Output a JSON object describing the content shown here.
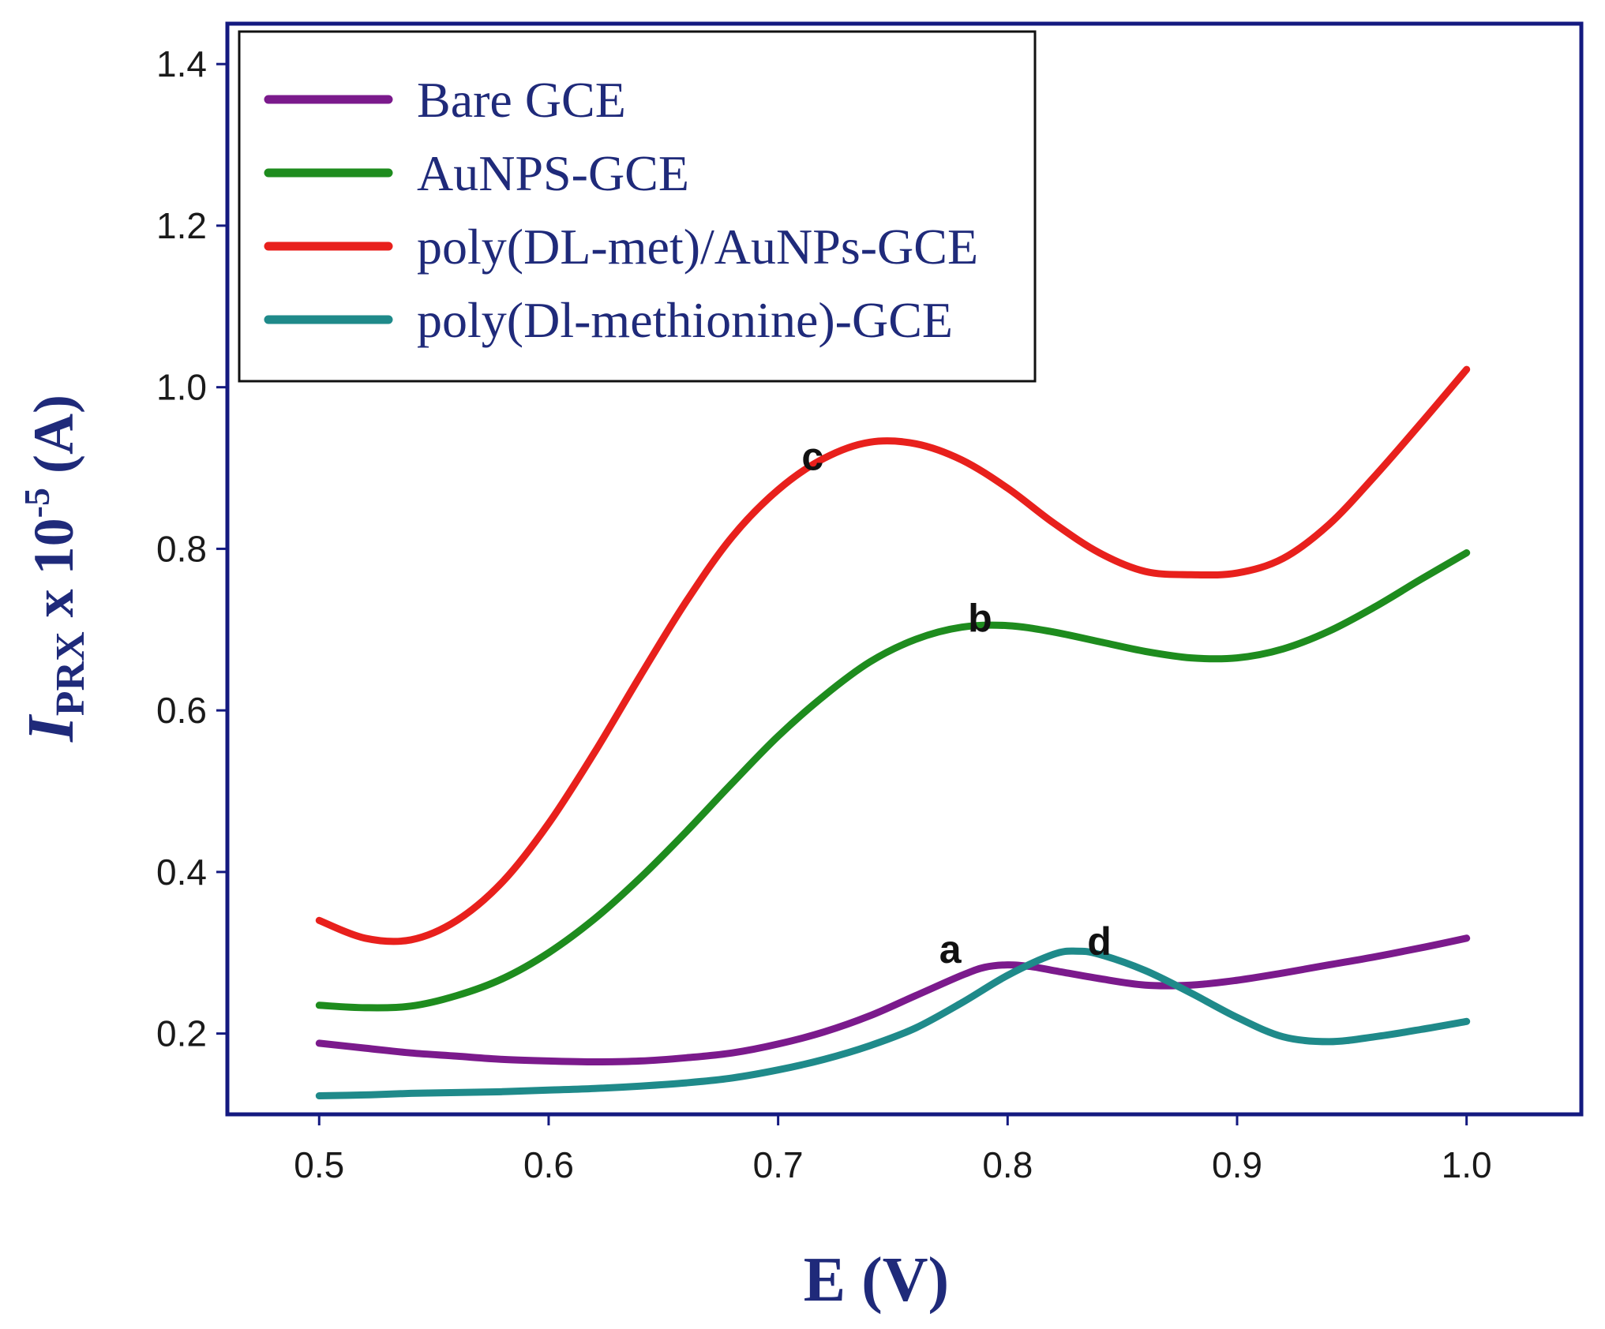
{
  "chart_data": {
    "type": "line",
    "title": "",
    "xlabel": "E (V)",
    "ylabel": {
      "italic_symbol": "I",
      "subscript": "PRX",
      "middle": " x 10",
      "superscript": "-5",
      "unit": " (A)"
    },
    "xlim": [
      0.46,
      1.05
    ],
    "ylim": [
      0.1,
      1.45
    ],
    "xticks": [
      {
        "value": 0.5,
        "label": "0.5"
      },
      {
        "value": 0.6,
        "label": "0.6"
      },
      {
        "value": 0.7,
        "label": "0.7"
      },
      {
        "value": 0.8,
        "label": "0.8"
      },
      {
        "value": 0.9,
        "label": "0.9"
      },
      {
        "value": 1.0,
        "label": "1.0"
      }
    ],
    "yticks": [
      {
        "value": 0.2,
        "label": "0.2"
      },
      {
        "value": 0.4,
        "label": "0.4"
      },
      {
        "value": 0.6,
        "label": "0.6"
      },
      {
        "value": 0.8,
        "label": "0.8"
      },
      {
        "value": 1.0,
        "label": "1.0"
      },
      {
        "value": 1.2,
        "label": "1.2"
      },
      {
        "value": 1.4,
        "label": "1.4"
      }
    ],
    "legend_position": "top-left",
    "series": [
      {
        "name": "Bare GCE",
        "label": "a",
        "label_at": [
          0.775,
          0.305
        ],
        "color": "#7b1a8c",
        "x": [
          0.5,
          0.52,
          0.54,
          0.56,
          0.58,
          0.6,
          0.62,
          0.64,
          0.66,
          0.68,
          0.7,
          0.72,
          0.74,
          0.76,
          0.78,
          0.79,
          0.8,
          0.81,
          0.82,
          0.84,
          0.86,
          0.88,
          0.9,
          0.92,
          0.94,
          0.96,
          0.98,
          1.0
        ],
        "y": [
          0.188,
          0.182,
          0.176,
          0.172,
          0.168,
          0.166,
          0.165,
          0.166,
          0.17,
          0.176,
          0.187,
          0.202,
          0.222,
          0.247,
          0.272,
          0.282,
          0.285,
          0.283,
          0.278,
          0.268,
          0.26,
          0.26,
          0.266,
          0.275,
          0.285,
          0.295,
          0.306,
          0.318
        ]
      },
      {
        "name": "AuNPS-GCE",
        "label": "b",
        "label_at": [
          0.788,
          0.715
        ],
        "color": "#1e8c1e",
        "x": [
          0.5,
          0.52,
          0.54,
          0.56,
          0.58,
          0.6,
          0.62,
          0.64,
          0.66,
          0.68,
          0.7,
          0.72,
          0.74,
          0.76,
          0.78,
          0.8,
          0.82,
          0.84,
          0.86,
          0.88,
          0.9,
          0.92,
          0.94,
          0.96,
          0.98,
          1.0
        ],
        "y": [
          0.235,
          0.232,
          0.234,
          0.247,
          0.268,
          0.3,
          0.342,
          0.393,
          0.45,
          0.51,
          0.568,
          0.618,
          0.66,
          0.688,
          0.703,
          0.705,
          0.697,
          0.685,
          0.673,
          0.665,
          0.665,
          0.676,
          0.698,
          0.728,
          0.762,
          0.795
        ]
      },
      {
        "name": "poly(DL-met)/AuNPs-GCE",
        "label": "c",
        "label_at": [
          0.715,
          0.915
        ],
        "color": "#e8201c",
        "x": [
          0.5,
          0.52,
          0.54,
          0.56,
          0.58,
          0.6,
          0.62,
          0.64,
          0.66,
          0.68,
          0.7,
          0.72,
          0.74,
          0.76,
          0.78,
          0.8,
          0.82,
          0.84,
          0.86,
          0.88,
          0.9,
          0.92,
          0.94,
          0.96,
          0.98,
          1.0
        ],
        "y": [
          0.34,
          0.318,
          0.316,
          0.34,
          0.388,
          0.46,
          0.548,
          0.643,
          0.735,
          0.815,
          0.873,
          0.912,
          0.932,
          0.93,
          0.91,
          0.875,
          0.832,
          0.795,
          0.772,
          0.768,
          0.77,
          0.788,
          0.83,
          0.89,
          0.955,
          1.022
        ]
      },
      {
        "name": "poly(Dl-methionine)-GCE",
        "label": "d",
        "label_at": [
          0.84,
          0.315
        ],
        "color": "#1f8a8a",
        "x": [
          0.5,
          0.52,
          0.54,
          0.56,
          0.58,
          0.6,
          0.62,
          0.64,
          0.66,
          0.68,
          0.7,
          0.72,
          0.74,
          0.76,
          0.78,
          0.8,
          0.82,
          0.83,
          0.84,
          0.86,
          0.88,
          0.9,
          0.92,
          0.94,
          0.96,
          0.98,
          1.0
        ],
        "y": [
          0.123,
          0.124,
          0.126,
          0.127,
          0.128,
          0.13,
          0.132,
          0.135,
          0.139,
          0.145,
          0.155,
          0.168,
          0.185,
          0.207,
          0.238,
          0.272,
          0.298,
          0.302,
          0.298,
          0.278,
          0.25,
          0.22,
          0.196,
          0.19,
          0.196,
          0.205,
          0.215
        ]
      }
    ]
  }
}
